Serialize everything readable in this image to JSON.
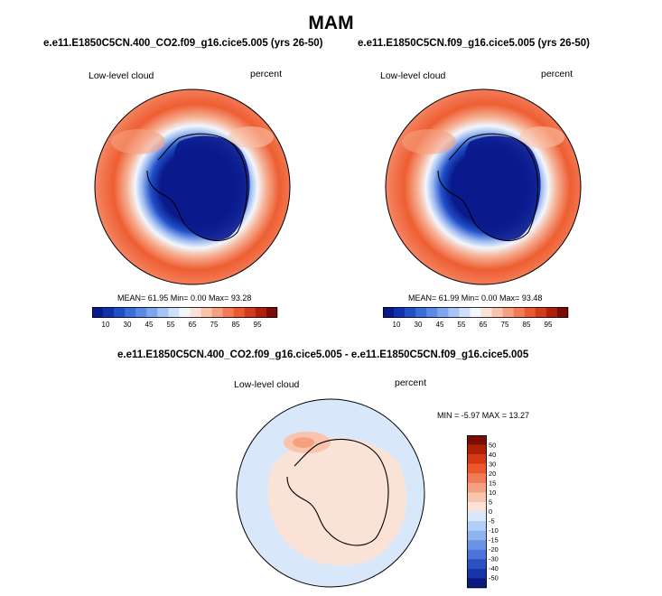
{
  "page_title": "MAM",
  "left_panel": {
    "case": "e.e11.E1850C5CN.400_CO2.f09_g16.cice5.005 (yrs 26-50)",
    "field": "Low-level cloud",
    "units": "percent",
    "stats": "MEAN= 61.95  Min=  0.00  Max= 93.28"
  },
  "right_panel": {
    "case": "e.e11.E1850C5CN.f09_g16.cice5.005 (yrs 26-50)",
    "field": "Low-level cloud",
    "units": "percent",
    "stats": "MEAN= 61.99  Min=  0.00  Max= 93.48"
  },
  "diff_panel": {
    "case": "e.e11.E1850C5CN.400_CO2.f09_g16.cice5.005 - e.e11.E1850C5CN.f09_g16.cice5.005",
    "field": "Low-level cloud",
    "units": "percent",
    "stats": "MIN = -5.97 MAX = 13.27"
  },
  "abs_colorbar": {
    "colors": [
      "#0a1a8c",
      "#1030b0",
      "#2050c8",
      "#3a6edb",
      "#5a8ae6",
      "#7ea6ef",
      "#a6c4f6",
      "#cfe0fa",
      "#f3f6fb",
      "#fbe2d6",
      "#f8c4ac",
      "#f5a080",
      "#f27a55",
      "#ea5a2e",
      "#d43a18",
      "#b02008",
      "#7a0e06"
    ],
    "tick_labels": [
      "10",
      "30",
      "45",
      "55",
      "65",
      "75",
      "85",
      "95"
    ]
  },
  "diff_colorbar": {
    "colors": [
      "#7a0e06",
      "#b02008",
      "#d43a18",
      "#ea5a2e",
      "#f27a55",
      "#f5a080",
      "#f8c4ac",
      "#fbe2d6",
      "#d8e8fa",
      "#b4cff5",
      "#8eb3ef",
      "#6a93e6",
      "#4a74d8",
      "#2c52c2",
      "#1634a6",
      "#0a1a80"
    ],
    "tick_labels": [
      "50",
      "40",
      "30",
      "20",
      "15",
      "10",
      "5",
      "0",
      "-5",
      "-10",
      "-15",
      "-20",
      "-30",
      "-40",
      "-50"
    ]
  }
}
